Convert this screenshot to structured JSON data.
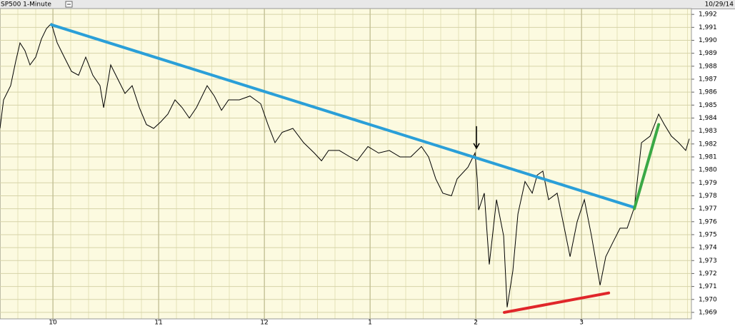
{
  "chart_data": {
    "type": "line",
    "title": "SP500 1-Minute",
    "date": "10/29/14",
    "xlim": [
      9.5,
      16.04
    ],
    "xticks": [
      10,
      11,
      12,
      {
        "value": 13,
        "label": "1"
      },
      {
        "value": 14,
        "label": "2"
      },
      {
        "value": 15,
        "label": "3"
      }
    ],
    "ylim": [
      1968.5,
      1992.45
    ],
    "yticks": [
      {
        "value": 1969,
        "label": "1,969"
      },
      {
        "value": 1970,
        "label": "1,970"
      },
      {
        "value": 1971,
        "label": "1,971"
      },
      {
        "value": 1972,
        "label": "1,972"
      },
      {
        "value": 1973,
        "label": "1,973"
      },
      {
        "value": 1974,
        "label": "1,974"
      },
      {
        "value": 1975,
        "label": "1,975"
      },
      {
        "value": 1976,
        "label": "1,976"
      },
      {
        "value": 1977,
        "label": "1,977"
      },
      {
        "value": 1978,
        "label": "1,978"
      },
      {
        "value": 1979,
        "label": "1,979"
      },
      {
        "value": 1980,
        "label": "1,980"
      },
      {
        "value": 1981,
        "label": "1,981"
      },
      {
        "value": 1982,
        "label": "1,982"
      },
      {
        "value": 1983,
        "label": "1,983"
      },
      {
        "value": 1984,
        "label": "1,984"
      },
      {
        "value": 1985,
        "label": "1,985"
      },
      {
        "value": 1986,
        "label": "1,986"
      },
      {
        "value": 1987,
        "label": "1,987"
      },
      {
        "value": 1988,
        "label": "1,988"
      },
      {
        "value": 1989,
        "label": "1,989"
      },
      {
        "value": 1990,
        "label": "1,990"
      },
      {
        "value": 1991,
        "label": "1,991"
      },
      {
        "value": 1992,
        "label": "1,992"
      }
    ],
    "grid": true,
    "color": "#000000",
    "x": [
      9.5,
      9.534,
      9.601,
      9.649,
      9.689,
      9.736,
      9.784,
      9.838,
      9.892,
      9.939,
      9.986,
      10.041,
      10.108,
      10.176,
      10.243,
      10.311,
      10.378,
      10.446,
      10.48,
      10.547,
      10.615,
      10.682,
      10.75,
      10.818,
      10.885,
      10.953,
      11.02,
      11.088,
      11.155,
      11.223,
      11.291,
      11.358,
      11.459,
      11.527,
      11.595,
      11.662,
      11.764,
      11.865,
      11.966,
      12.034,
      12.101,
      12.169,
      12.27,
      12.372,
      12.473,
      12.541,
      12.608,
      12.709,
      12.811,
      12.878,
      12.98,
      13.081,
      13.182,
      13.284,
      13.385,
      13.486,
      13.554,
      13.622,
      13.689,
      13.77,
      13.824,
      13.926,
      13.993,
      14.014,
      14.027,
      14.081,
      14.128,
      14.196,
      14.264,
      14.297,
      14.351,
      14.399,
      14.466,
      14.534,
      14.581,
      14.635,
      14.689,
      14.77,
      14.838,
      14.892,
      14.959,
      15.027,
      15.095,
      15.176,
      15.23,
      15.297,
      15.365,
      15.432,
      15.5,
      15.568,
      15.649,
      15.73,
      15.784,
      15.851,
      15.919,
      15.986,
      16.02
    ],
    "values": [
      1983.2,
      1985.4,
      1986.5,
      1988.4,
      1989.8,
      1989.2,
      1988.1,
      1988.7,
      1990.1,
      1990.9,
      1991.3,
      1989.8,
      1988.7,
      1987.6,
      1987.3,
      1988.7,
      1987.3,
      1986.5,
      1984.8,
      1988.1,
      1987.0,
      1985.9,
      1986.5,
      1984.8,
      1983.5,
      1983.2,
      1983.7,
      1984.3,
      1985.4,
      1984.8,
      1984.0,
      1984.8,
      1986.5,
      1985.7,
      1984.6,
      1985.4,
      1985.4,
      1985.7,
      1985.1,
      1983.5,
      1982.1,
      1982.9,
      1983.2,
      1982.1,
      1981.3,
      1980.7,
      1981.5,
      1981.5,
      1981.0,
      1980.7,
      1981.8,
      1981.3,
      1981.5,
      1981.0,
      1981.0,
      1981.8,
      1981.0,
      1979.3,
      1978.2,
      1978.0,
      1979.3,
      1980.2,
      1981.3,
      1979.3,
      1976.9,
      1978.2,
      1972.7,
      1977.7,
      1974.9,
      1969.4,
      1972.2,
      1976.6,
      1979.1,
      1978.2,
      1979.6,
      1979.9,
      1977.7,
      1978.2,
      1975.5,
      1973.3,
      1976.0,
      1977.7,
      1974.9,
      1971.1,
      1973.3,
      1974.4,
      1975.5,
      1975.5,
      1977.1,
      1982.1,
      1982.6,
      1984.3,
      1983.5,
      1982.6,
      1982.1,
      1981.5,
      1982.4
    ],
    "trendlines": [
      {
        "color": "#2a9fd8",
        "x": [
          9.986,
          15.5
        ],
        "y": [
          1991.2,
          1977.1
        ]
      },
      {
        "color": "#e0262a",
        "x": [
          14.27,
          15.257
        ],
        "y": [
          1969.0,
          1970.5
        ]
      },
      {
        "color": "#3aa845",
        "x": [
          15.5,
          15.73
        ],
        "y": [
          1977.0,
          1983.5
        ]
      }
    ],
    "arrow": {
      "x": 14.007,
      "y": 1981.5
    }
  }
}
